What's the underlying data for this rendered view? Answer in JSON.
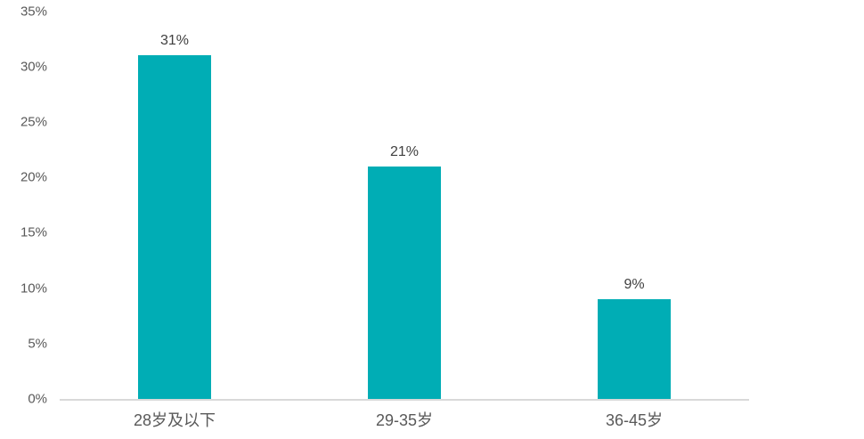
{
  "chart_data": {
    "type": "bar",
    "title": "",
    "xlabel": "",
    "ylabel": "",
    "categories": [
      "28岁及以下",
      "29-35岁",
      "36-45岁"
    ],
    "values": [
      31,
      21,
      9
    ],
    "data_labels": [
      "31%",
      "21%",
      "9%"
    ],
    "y_ticks": [
      {
        "value": 35,
        "label": "35%"
      },
      {
        "value": 30,
        "label": "30%"
      },
      {
        "value": 25,
        "label": "25%"
      },
      {
        "value": 20,
        "label": "20%"
      },
      {
        "value": 15,
        "label": "15%"
      },
      {
        "value": 10,
        "label": "10%"
      },
      {
        "value": 5,
        "label": "5%"
      },
      {
        "value": 0,
        "label": "0%"
      }
    ],
    "ylim": [
      0,
      35
    ],
    "grid": false,
    "legend_position": "none",
    "colors": {
      "bar": "#00ADB5",
      "axis_line": "#D9D9D9",
      "tick_label": "#595959",
      "data_label": "#404040",
      "category_label": "#595959",
      "background": "#FFFFFF"
    }
  }
}
